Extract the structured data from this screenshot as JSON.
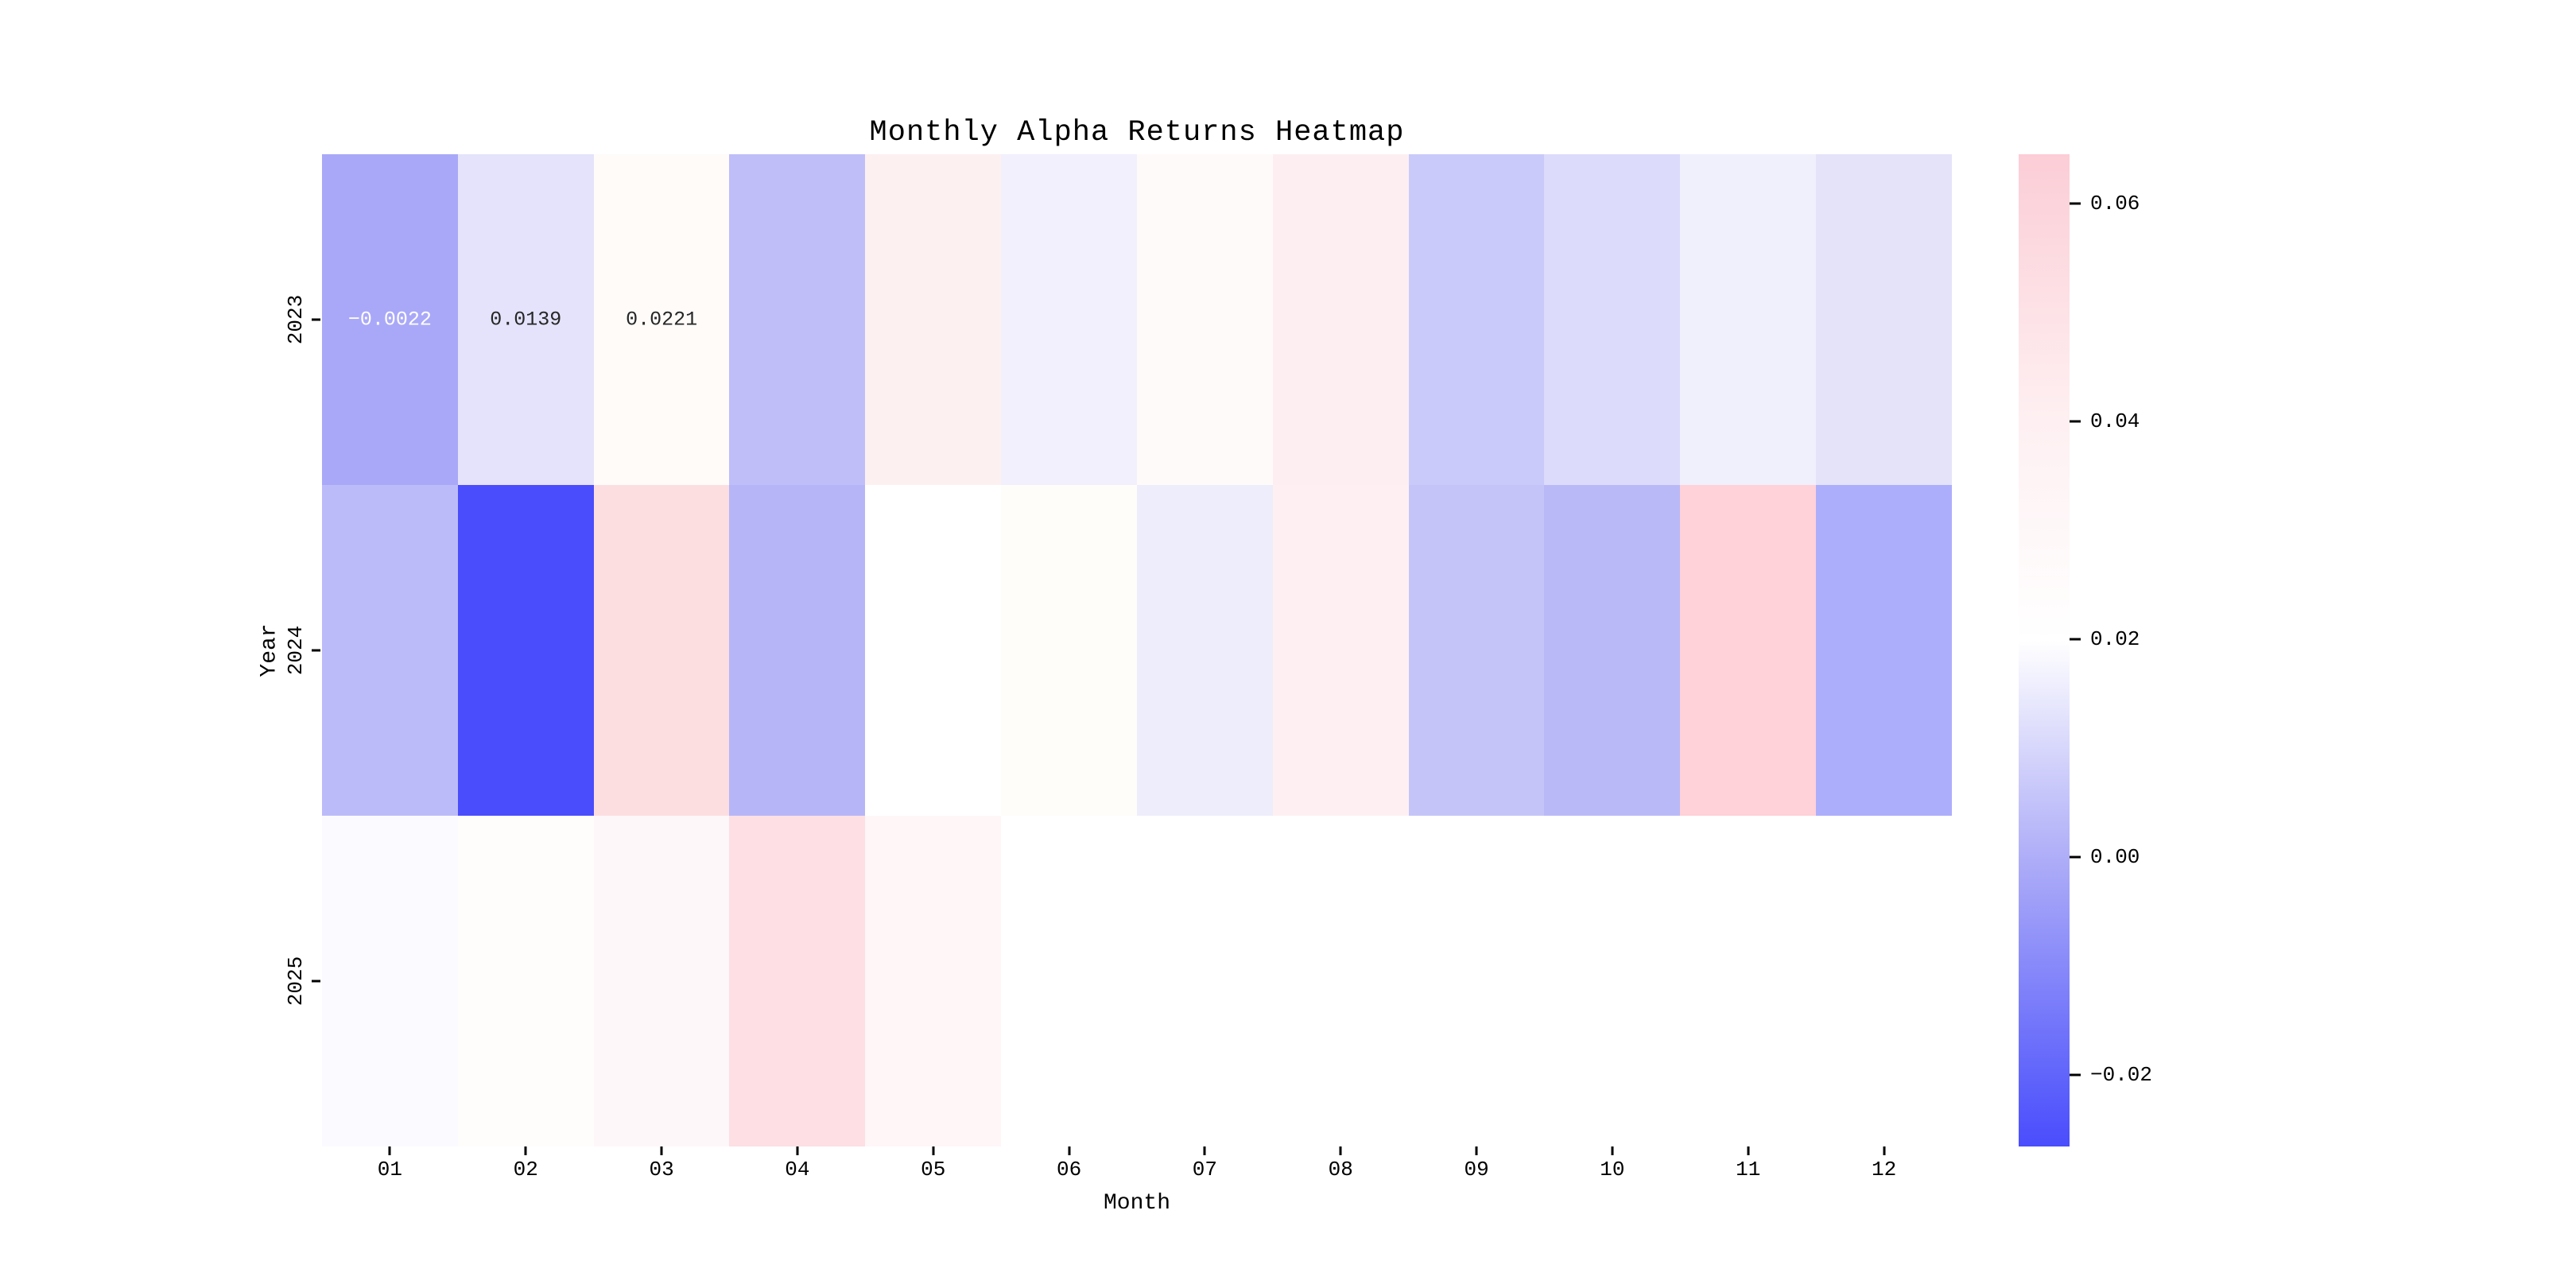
{
  "figure": {
    "background": "#FFFFFF",
    "text_color": "#000000"
  },
  "chart_data": {
    "type": "heatmap",
    "title": "Monthly Alpha Returns Heatmap",
    "xlabel": "Month",
    "ylabel": "Year",
    "x_categories": [
      "01",
      "02",
      "03",
      "04",
      "05",
      "06",
      "07",
      "08",
      "09",
      "10",
      "11",
      "12"
    ],
    "y_categories": [
      "2023",
      "2024",
      "2025"
    ],
    "values": [
      [
        -0.0022,
        0.0139,
        0.0221,
        0.003,
        0.04,
        0.018,
        0.027,
        0.041,
        0.007,
        0.011,
        0.017,
        0.013
      ],
      [
        0.003,
        -0.027,
        0.053,
        0.001,
        0.021,
        0.023,
        0.016,
        0.04,
        0.006,
        0.002,
        0.062,
        -0.002
      ],
      [
        0.02,
        0.023,
        0.032,
        0.052,
        0.033,
        null,
        null,
        null,
        null,
        null,
        null,
        null
      ]
    ],
    "cell_colors": [
      [
        "#A9A8F8",
        "#E4E3FB",
        "#FEFBF9",
        "#BFBEF9",
        "#FDF0F1",
        "#F1F0FC",
        "#FFFAFA",
        "#FDEFF1",
        "#CACAFA",
        "#DCDBFB",
        "#F0EFFC",
        "#E4E3FA"
      ],
      [
        "#BCBBF9",
        "#4A4DFC",
        "#FCDEE1",
        "#B6B5F8",
        "#FFFFFF",
        "#FFFDFA",
        "#EEEDFB",
        "#FEF0F2",
        "#C5C4F9",
        "#BAB9F8",
        "#FFD1D8",
        "#ADAEFB"
      ],
      [
        "#FBFAFF",
        "#FFFDFC",
        "#FEF7F9",
        "#FDDFE4",
        "#FFF6F8",
        "#FFFFFF",
        "#FFFFFF",
        "#FFFFFF",
        "#FFFFFF",
        "#FFFFFF",
        "#FFFFFF",
        "#FFFFFF"
      ]
    ],
    "no_data_color": "#FFFFFF",
    "annotations": [
      {
        "row": 0,
        "col": 0,
        "text": "−0.0022",
        "color": "#FFFFFF"
      },
      {
        "row": 0,
        "col": 1,
        "text": "0.0139",
        "color": "#262626"
      },
      {
        "row": 0,
        "col": 2,
        "text": "0.0221",
        "color": "#262626"
      }
    ],
    "colorbar": {
      "vmin": -0.0266,
      "vmax": 0.0645,
      "tick_values": [
        0.06,
        0.04,
        0.02,
        0.0,
        -0.02
      ],
      "tick_labels": [
        "0.06",
        "0.04",
        "0.02",
        "0.00",
        "−0.02"
      ],
      "gradient_stops": [
        {
          "pos": 0.0,
          "color": "#FCCDD6"
        },
        {
          "pos": 0.05,
          "color": "#FCD4DB"
        },
        {
          "pos": 0.27,
          "color": "#FEF0F2"
        },
        {
          "pos": 0.49,
          "color": "#FFFFFF"
        },
        {
          "pos": 0.71,
          "color": "#AEADF8"
        },
        {
          "pos": 0.93,
          "color": "#6064FB"
        },
        {
          "pos": 1.0,
          "color": "#4A4DFC"
        }
      ]
    },
    "legend_position": "right-colorbar",
    "grid": false
  }
}
